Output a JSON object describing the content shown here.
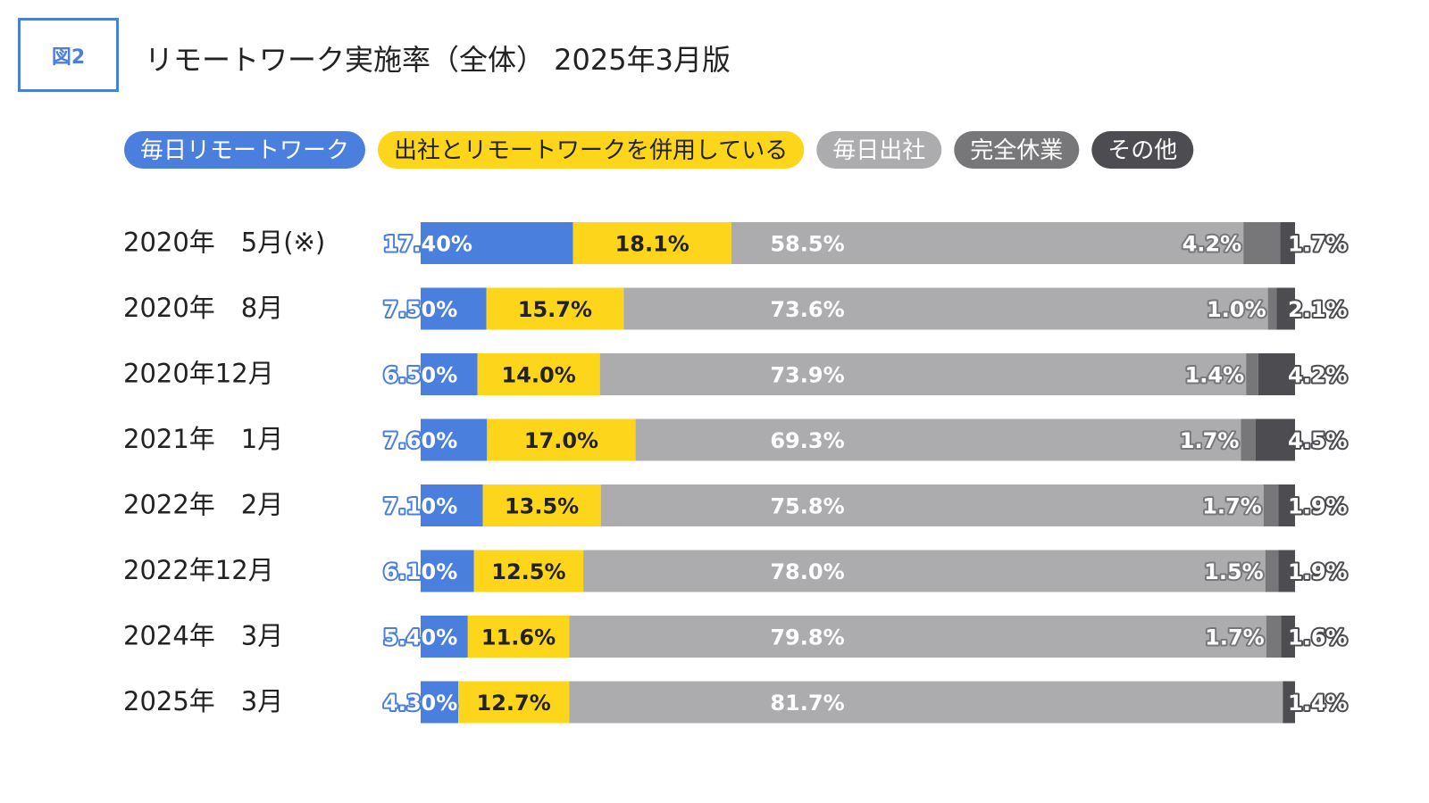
{
  "figure_label": "図2",
  "title": "リモートワーク実施率（全体） 2025年3月版",
  "colors": {
    "daily_remote": "#4a7fde",
    "hybrid": "#fdd61c",
    "daily_office": "#acacae",
    "full_leave": "#77777a",
    "other": "#4d4d51",
    "label_dark": "#222222",
    "label_light": "#ffffff"
  },
  "chart_data": {
    "type": "bar",
    "orientation": "horizontal",
    "stacked": true,
    "normalized": true,
    "legend_position": "top",
    "categories": [
      "2020年　5月(※)",
      "2020年　8月",
      "2020年12月",
      "2021年　1月",
      "2022年　2月",
      "2022年12月",
      "2024年　3月",
      "2025年　3月"
    ],
    "series": [
      {
        "name": "毎日リモートワーク",
        "values": [
          17.4,
          7.5,
          6.5,
          7.6,
          7.1,
          6.1,
          5.4,
          4.3
        ],
        "labels": [
          "17.40%",
          "7.50%",
          "6.50%",
          "7.60%",
          "7.10%",
          "6.10%",
          "5.40%",
          "4.30%"
        ]
      },
      {
        "name": "出社とリモートワークを併用している",
        "values": [
          18.1,
          15.7,
          14.0,
          17.0,
          13.5,
          12.5,
          11.6,
          12.7
        ],
        "labels": [
          "18.1%",
          "15.7%",
          "14.0%",
          "17.0%",
          "13.5%",
          "12.5%",
          "11.6%",
          "12.7%"
        ]
      },
      {
        "name": "毎日出社",
        "values": [
          58.5,
          73.6,
          73.9,
          69.3,
          75.8,
          78.0,
          79.8,
          81.7
        ],
        "labels": [
          "58.5%",
          "73.6%",
          "73.9%",
          "69.3%",
          "75.8%",
          "78.0%",
          "79.8%",
          "81.7%"
        ]
      },
      {
        "name": "完全休業",
        "values": [
          4.2,
          1.0,
          1.4,
          1.7,
          1.7,
          1.5,
          1.7,
          0.0
        ],
        "labels": [
          "4.2%",
          "1.0%",
          "1.4%",
          "1.7%",
          "1.7%",
          "1.5%",
          "1.7%",
          ""
        ]
      },
      {
        "name": "その他",
        "values": [
          1.7,
          2.1,
          4.2,
          4.5,
          1.9,
          1.9,
          1.6,
          1.4
        ],
        "labels": [
          "1.7%",
          "2.1%",
          "4.2%",
          "4.5%",
          "1.9%",
          "1.9%",
          "1.6%",
          "1.4%"
        ]
      }
    ]
  }
}
